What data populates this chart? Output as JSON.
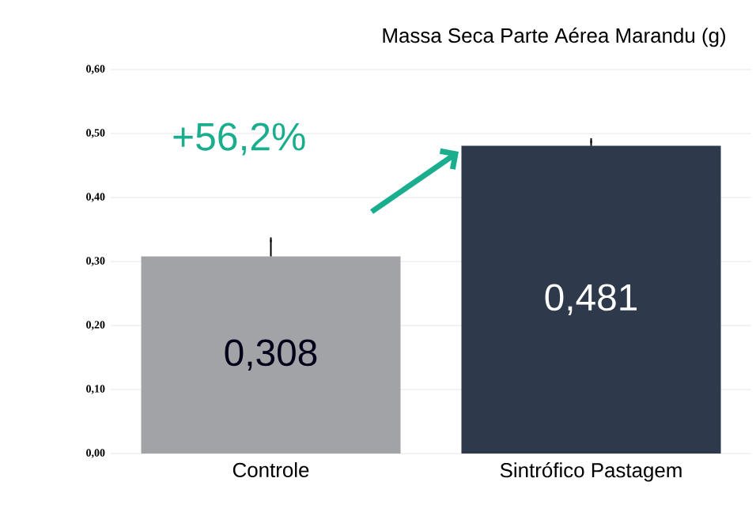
{
  "chart_data": {
    "type": "bar",
    "title": "Massa Seca Parte Aérea Marandu (g)",
    "categories": [
      "Controle",
      "Sintrófico Pastagem"
    ],
    "values": [
      0.308,
      0.481
    ],
    "colors": [
      "#a2a3a7",
      "#2e3a4b"
    ],
    "errors": [
      0.026,
      0.008
    ],
    "value_labels": [
      "0,308",
      "0,481"
    ],
    "ylim": [
      0,
      0.6
    ],
    "yticks": [
      {
        "value": 0,
        "label": "0,00"
      },
      {
        "value": 0.1,
        "label": "0,10"
      },
      {
        "value": 0.2,
        "label": "0,20"
      },
      {
        "value": 0.3,
        "label": "0,30"
      },
      {
        "value": 0.4,
        "label": "0,40"
      },
      {
        "value": 0.5,
        "label": "0,50"
      },
      {
        "value": 0.6,
        "label": "0,60"
      }
    ],
    "annotations": [
      "+56,2%"
    ],
    "grid": "y"
  }
}
